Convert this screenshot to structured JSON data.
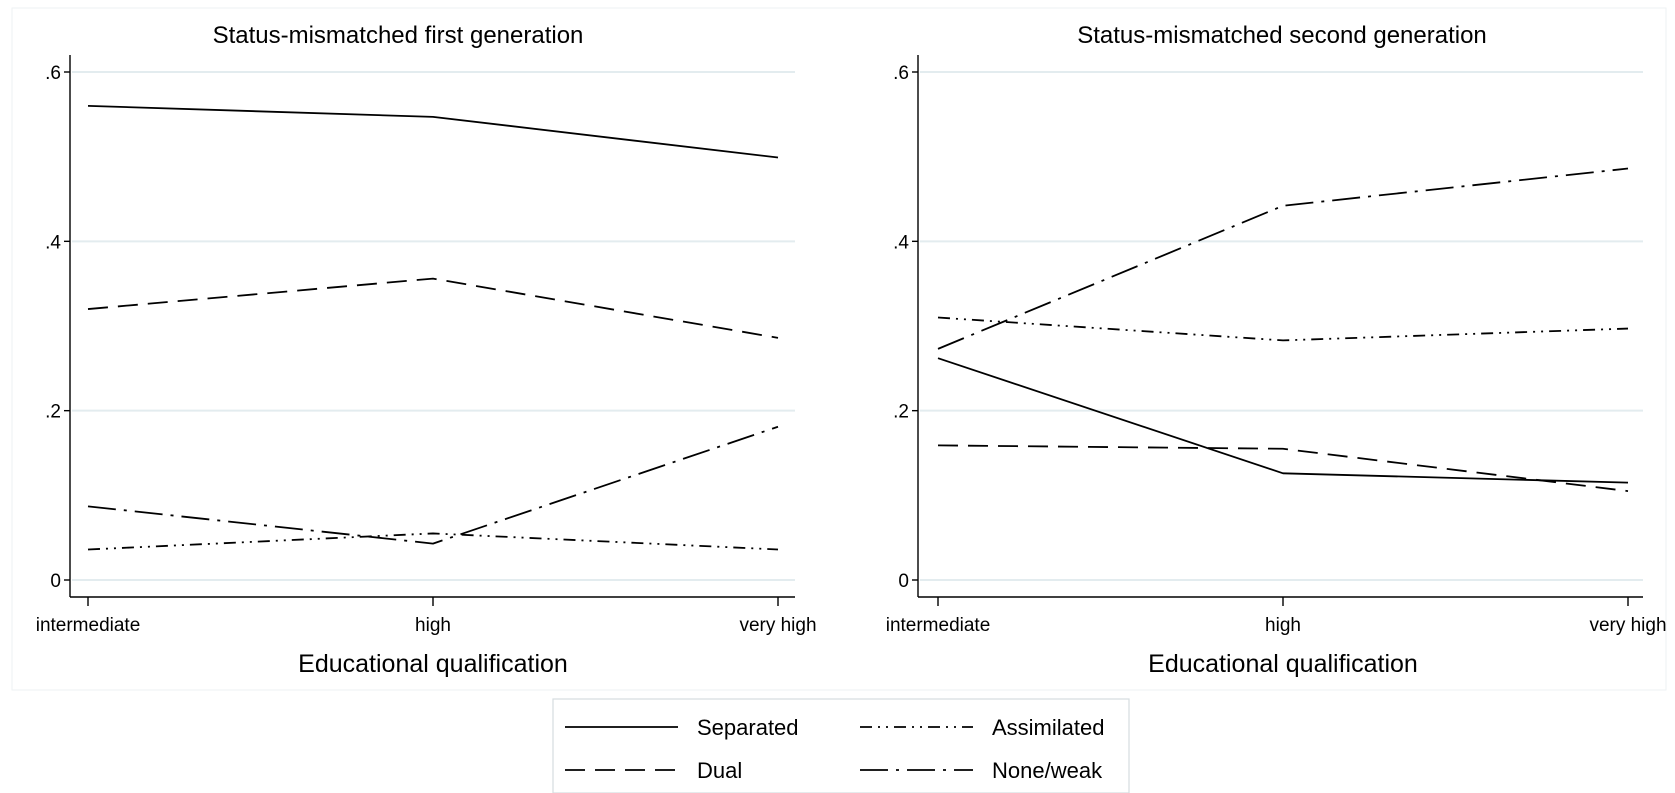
{
  "figure": {
    "legend_placement": "bottom-center",
    "grid": true,
    "colors": {
      "line": "#000000",
      "grid": "#e3ecef",
      "frame": "#dfe6e8",
      "background": "#ffffff"
    }
  },
  "legend": {
    "entries": [
      {
        "label": "Separated",
        "style": "solid"
      },
      {
        "label": "Assimilated",
        "style": "dash-dot-dot"
      },
      {
        "label": "Dual",
        "style": "dash"
      },
      {
        "label": "None/weak",
        "style": "long-dash-dot"
      }
    ]
  },
  "chart_data": [
    {
      "type": "line",
      "title": "Status-mismatched first generation",
      "xlabel": "Educational qualification",
      "ylabel": "",
      "categories": [
        "intermediate",
        "high",
        "very high"
      ],
      "ylim": [
        0,
        0.6
      ],
      "yticks": [
        0,
        0.2,
        0.4,
        0.6
      ],
      "ytick_labels": [
        "0",
        ".2",
        ".4",
        ".6"
      ],
      "grid": true,
      "series": [
        {
          "name": "Separated",
          "style": "solid",
          "values": [
            0.56,
            0.547,
            0.499
          ]
        },
        {
          "name": "Dual",
          "style": "dash",
          "values": [
            0.32,
            0.356,
            0.286
          ]
        },
        {
          "name": "Assimilated",
          "style": "dash-dot-dot",
          "values": [
            0.036,
            0.055,
            0.036
          ]
        },
        {
          "name": "None/weak",
          "style": "long-dash-dot",
          "values": [
            0.087,
            0.043,
            0.181
          ]
        }
      ]
    },
    {
      "type": "line",
      "title": "Status-mismatched second generation",
      "xlabel": "Educational qualification",
      "ylabel": "",
      "categories": [
        "intermediate",
        "high",
        "very high"
      ],
      "ylim": [
        0,
        0.6
      ],
      "yticks": [
        0,
        0.2,
        0.4,
        0.6
      ],
      "ytick_labels": [
        "0",
        ".2",
        ".4",
        ".6"
      ],
      "grid": true,
      "series": [
        {
          "name": "Separated",
          "style": "solid",
          "values": [
            0.262,
            0.126,
            0.115
          ]
        },
        {
          "name": "Dual",
          "style": "dash",
          "values": [
            0.159,
            0.155,
            0.105
          ]
        },
        {
          "name": "Assimilated",
          "style": "dash-dot-dot",
          "values": [
            0.31,
            0.283,
            0.297
          ]
        },
        {
          "name": "None/weak",
          "style": "long-dash-dot",
          "values": [
            0.273,
            0.442,
            0.486
          ]
        }
      ]
    }
  ]
}
